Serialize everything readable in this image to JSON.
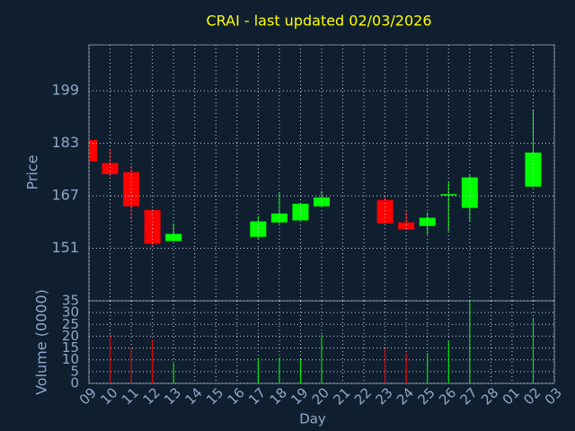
{
  "chart_data": {
    "type": "candlestick",
    "title": "CRAI - last updated 02/03/2026",
    "xlabel": "Day",
    "ylabel": "Price",
    "volume_label": "Volume (0000)",
    "categories": [
      "09",
      "10",
      "11",
      "12",
      "13",
      "14",
      "15",
      "16",
      "17",
      "18",
      "19",
      "20",
      "21",
      "22",
      "23",
      "24",
      "25",
      "26",
      "27",
      "28",
      "01",
      "02",
      "03"
    ],
    "open": [
      184.0,
      177.0,
      174.2,
      162.7,
      153.2,
      null,
      null,
      null,
      154.5,
      158.9,
      159.5,
      163.8,
      null,
      null,
      165.7,
      158.9,
      157.8,
      167.4,
      163.3,
      null,
      null,
      169.8,
      null
    ],
    "high": [
      184.0,
      181.2,
      176.1,
      162.7,
      158.6,
      null,
      null,
      null,
      160.8,
      167.9,
      164.6,
      168.5,
      null,
      null,
      167.1,
      162.2,
      161.9,
      171.2,
      173.4,
      null,
      null,
      193.3,
      null
    ],
    "low": [
      177.5,
      172.8,
      159.7,
      151.5,
      153.2,
      null,
      null,
      null,
      154.0,
      158.4,
      159.5,
      163.8,
      null,
      null,
      158.6,
      156.7,
      155.1,
      156.2,
      159.2,
      null,
      null,
      169.8,
      null
    ],
    "close": [
      177.5,
      173.6,
      163.8,
      152.4,
      155.4,
      null,
      null,
      null,
      159.2,
      161.6,
      164.6,
      166.5,
      null,
      null,
      158.6,
      156.7,
      160.3,
      167.5,
      172.6,
      null,
      null,
      180.2,
      null
    ],
    "volume": [
      null,
      20.5,
      15.2,
      18.6,
      8.4,
      null,
      null,
      null,
      10.6,
      11.0,
      10.3,
      20.5,
      null,
      null,
      14.8,
      12.9,
      12.9,
      17.9,
      35.0,
      null,
      null,
      27.8,
      null
    ],
    "up_color": "#00ff00",
    "down_color": "#ff0000",
    "ylim": [
      135,
      213
    ],
    "yticks": [
      151,
      167,
      183,
      199
    ],
    "volume_lim": [
      0,
      35
    ],
    "volume_ticks": [
      0,
      5,
      10,
      15,
      20,
      25,
      30,
      35
    ],
    "grid": true
  }
}
